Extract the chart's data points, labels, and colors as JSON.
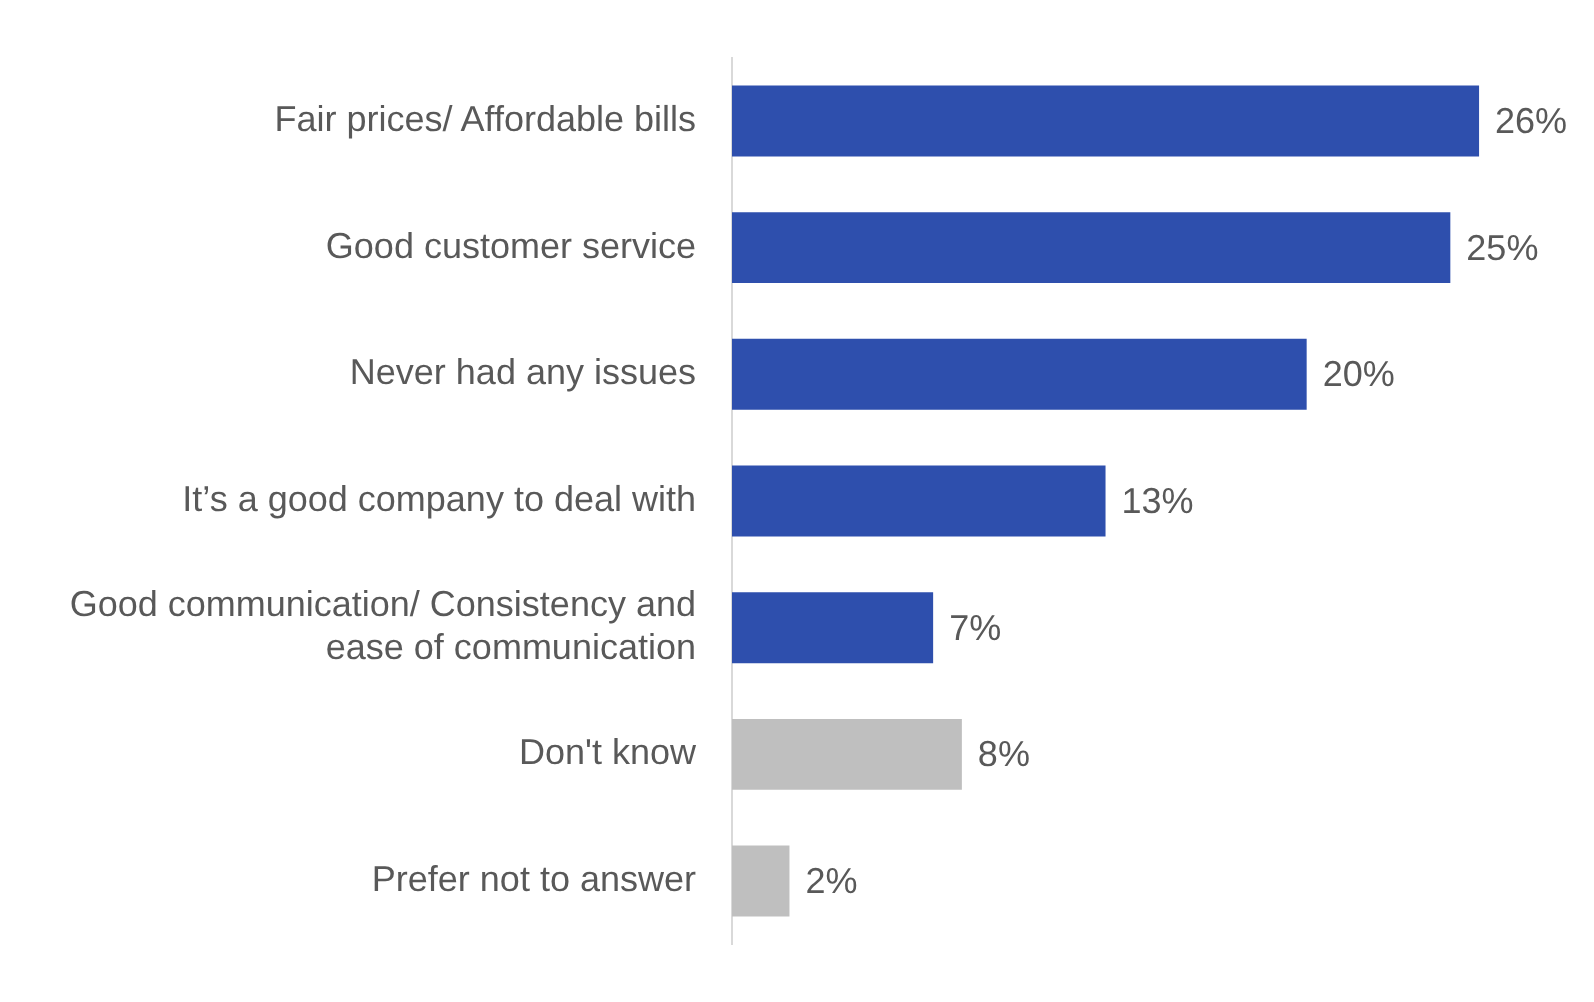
{
  "chart_data": {
    "type": "bar",
    "orientation": "horizontal",
    "categories": [
      "Fair prices/ Affordable bills",
      "Good customer service",
      "Never had any issues",
      "It’s a good company to deal with",
      "Good communication/ Consistency and ease of communication",
      "Don't know",
      "Prefer not to answer"
    ],
    "values": [
      26,
      25,
      20,
      13,
      7,
      8,
      2
    ],
    "colors": [
      "#2e4fad",
      "#2e4fad",
      "#2e4fad",
      "#2e4fad",
      "#2e4fad",
      "#bfbfbf",
      "#bfbfbf"
    ],
    "value_labels": [
      "26%",
      "25%",
      "20%",
      "13%",
      "7%",
      "8%",
      "2%"
    ],
    "grid": false,
    "legend": false
  }
}
